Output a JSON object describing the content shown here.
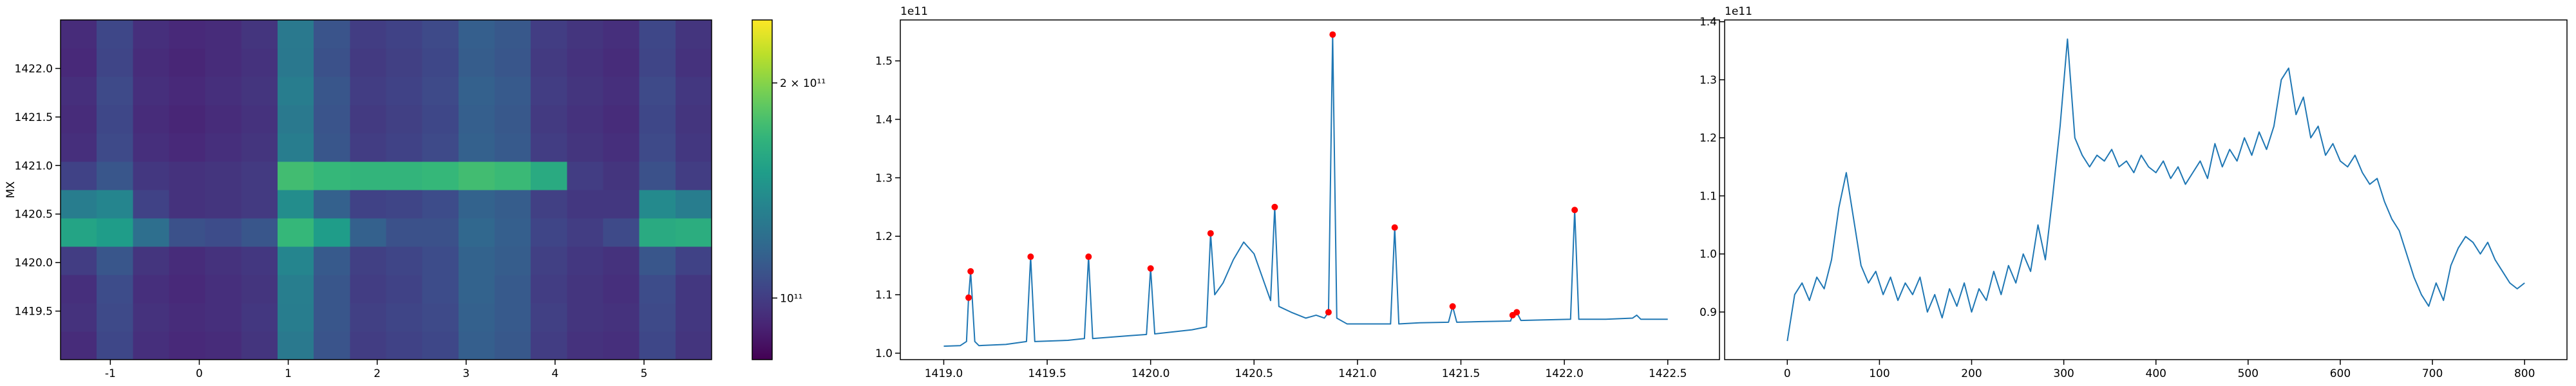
{
  "chart_data": [
    {
      "type": "heatmap",
      "ylabel": "MX",
      "xlim": [
        -1.56,
        5.76
      ],
      "ylim": [
        1419.0,
        1422.5
      ],
      "xticks": [
        -1,
        0,
        1,
        2,
        3,
        4,
        5
      ],
      "yticks": [
        1419.5,
        {
          "value": 1420,
          "label": "1420.0"
        },
        1420.5,
        {
          "value": 1421,
          "label": "1421.0"
        },
        1421.5,
        {
          "value": 1422,
          "label": "1422.0"
        }
      ],
      "colormap": "viridis",
      "color_log": true,
      "clim": [
        82000000000.0,
        245000000000.0
      ],
      "cticks": [
        {
          "value": 100000000000.0,
          "label": "10¹¹"
        },
        {
          "value": 200000000000.0,
          "label": "2 × 10¹¹"
        }
      ],
      "z": [
        [
          94000000000.0,
          104000000000.0,
          95000000000.0,
          93000000000.0,
          94000000000.0,
          97000000000.0,
          128000000000.0,
          109000000000.0,
          100000000000.0,
          102000000000.0,
          104000000000.0,
          114000000000.0,
          111000000000.0,
          100000000000.0,
          96000000000.0,
          95000000000.0,
          104000000000.0,
          97000000000.0
        ],
        [
          96000000000.0,
          105000000000.0,
          96000000000.0,
          94000000000.0,
          95000000000.0,
          98000000000.0,
          130000000000.0,
          110000000000.0,
          101000000000.0,
          103000000000.0,
          105000000000.0,
          115000000000.0,
          112000000000.0,
          101000000000.0,
          97000000000.0,
          96000000000.0,
          105000000000.0,
          98000000000.0
        ],
        [
          95000000000.0,
          106000000000.0,
          95000000000.0,
          93000000000.0,
          95000000000.0,
          97000000000.0,
          131000000000.0,
          110000000000.0,
          100000000000.0,
          102000000000.0,
          106000000000.0,
          116000000000.0,
          112000000000.0,
          100000000000.0,
          97000000000.0,
          95000000000.0,
          106000000000.0,
          98000000000.0
        ],
        [
          100000000000.0,
          110000000000.0,
          97000000000.0,
          94000000000.0,
          96000000000.0,
          98000000000.0,
          135000000000.0,
          112000000000.0,
          101000000000.0,
          103000000000.0,
          106000000000.0,
          116000000000.0,
          113000000000.0,
          101000000000.0,
          98000000000.0,
          96000000000.0,
          110000000000.0,
          102000000000.0
        ],
        [
          155000000000.0,
          150000000000.0,
          122000000000.0,
          108000000000.0,
          106000000000.0,
          110000000000.0,
          170000000000.0,
          150000000000.0,
          115000000000.0,
          108000000000.0,
          108000000000.0,
          118000000000.0,
          114000000000.0,
          103000000000.0,
          100000000000.0,
          105000000000.0,
          160000000000.0,
          162000000000.0
        ],
        [
          130000000000.0,
          135000000000.0,
          102000000000.0,
          96000000000.0,
          97000000000.0,
          99000000000.0,
          140000000000.0,
          115000000000.0,
          102000000000.0,
          103000000000.0,
          106000000000.0,
          116000000000.0,
          113000000000.0,
          101000000000.0,
          98000000000.0,
          98000000000.0,
          138000000000.0,
          130000000000.0
        ],
        [
          102000000000.0,
          110000000000.0,
          98000000000.0,
          96000000000.0,
          97000000000.0,
          99000000000.0,
          175000000000.0,
          170000000000.0,
          168000000000.0,
          168000000000.0,
          170000000000.0,
          175000000000.0,
          172000000000.0,
          160000000000.0,
          100000000000.0,
          97000000000.0,
          108000000000.0,
          100000000000.0
        ],
        [
          95000000000.0,
          105000000000.0,
          95000000000.0,
          93000000000.0,
          95000000000.0,
          97000000000.0,
          130000000000.0,
          110000000000.0,
          100000000000.0,
          102000000000.0,
          105000000000.0,
          115000000000.0,
          112000000000.0,
          100000000000.0,
          97000000000.0,
          95000000000.0,
          105000000000.0,
          98000000000.0
        ],
        [
          94000000000.0,
          104000000000.0,
          94000000000.0,
          92000000000.0,
          94000000000.0,
          96000000000.0,
          128000000000.0,
          109000000000.0,
          99000000000.0,
          101000000000.0,
          104000000000.0,
          114000000000.0,
          111000000000.0,
          99000000000.0,
          96000000000.0,
          94000000000.0,
          104000000000.0,
          97000000000.0
        ],
        [
          95000000000.0,
          105000000000.0,
          95000000000.0,
          93000000000.0,
          95000000000.0,
          97000000000.0,
          130000000000.0,
          110000000000.0,
          100000000000.0,
          102000000000.0,
          105000000000.0,
          115000000000.0,
          112000000000.0,
          100000000000.0,
          97000000000.0,
          95000000000.0,
          105000000000.0,
          98000000000.0
        ],
        [
          93000000000.0,
          103000000000.0,
          94000000000.0,
          92000000000.0,
          94000000000.0,
          96000000000.0,
          127000000000.0,
          108000000000.0,
          99000000000.0,
          101000000000.0,
          104000000000.0,
          113000000000.0,
          110000000000.0,
          99000000000.0,
          96000000000.0,
          94000000000.0,
          103000000000.0,
          96000000000.0
        ],
        [
          94000000000.0,
          104000000000.0,
          95000000000.0,
          93000000000.0,
          94000000000.0,
          97000000000.0,
          128000000000.0,
          109000000000.0,
          100000000000.0,
          102000000000.0,
          105000000000.0,
          114000000000.0,
          111000000000.0,
          100000000000.0,
          97000000000.0,
          95000000000.0,
          104000000000.0,
          97000000000.0
        ]
      ]
    },
    {
      "type": "line",
      "offset_label": "1e11",
      "xlim": [
        1418.79,
        1422.75
      ],
      "ylim": [
        0.989,
        1.57
      ],
      "xticks": [
        {
          "value": 1419,
          "label": "1419.0"
        },
        1419.5,
        {
          "value": 1420,
          "label": "1420.0"
        },
        1420.5,
        {
          "value": 1421,
          "label": "1421.0"
        },
        1421.5,
        {
          "value": 1422,
          "label": "1422.0"
        },
        1422.5
      ],
      "yticks": [
        {
          "value": 1,
          "label": "1.0"
        },
        1.1,
        1.2,
        1.3,
        1.4,
        1.5
      ],
      "x": [
        1419.0,
        1419.08,
        1419.11,
        1419.12,
        1419.13,
        1419.15,
        1419.17,
        1419.3,
        1419.4,
        1419.42,
        1419.44,
        1419.6,
        1419.68,
        1419.7,
        1419.72,
        1419.9,
        1419.98,
        1420.0,
        1420.02,
        1420.2,
        1420.27,
        1420.29,
        1420.31,
        1420.35,
        1420.4,
        1420.45,
        1420.5,
        1420.55,
        1420.58,
        1420.6,
        1420.62,
        1420.68,
        1420.75,
        1420.8,
        1420.84,
        1420.86,
        1420.88,
        1420.9,
        1420.95,
        1421.0,
        1421.1,
        1421.16,
        1421.18,
        1421.2,
        1421.3,
        1421.44,
        1421.46,
        1421.48,
        1421.6,
        1421.74,
        1421.75,
        1421.77,
        1421.79,
        1421.9,
        1422.03,
        1422.05,
        1422.07,
        1422.2,
        1422.33,
        1422.35,
        1422.37,
        1422.5
      ],
      "series": [
        {
          "color": "#1f77b4",
          "values": [
            1.012,
            1.013,
            1.02,
            1.095,
            1.14,
            1.02,
            1.013,
            1.015,
            1.02,
            1.165,
            1.02,
            1.022,
            1.025,
            1.165,
            1.025,
            1.03,
            1.032,
            1.145,
            1.033,
            1.04,
            1.045,
            1.205,
            1.1,
            1.12,
            1.16,
            1.19,
            1.17,
            1.12,
            1.09,
            1.25,
            1.08,
            1.07,
            1.06,
            1.065,
            1.06,
            1.07,
            1.545,
            1.06,
            1.05,
            1.05,
            1.05,
            1.05,
            1.215,
            1.05,
            1.052,
            1.053,
            1.08,
            1.053,
            1.054,
            1.055,
            1.065,
            1.07,
            1.056,
            1.057,
            1.058,
            1.245,
            1.058,
            1.058,
            1.06,
            1.065,
            1.058,
            1.058
          ]
        }
      ],
      "points": {
        "color": "red",
        "x": [
          1419.12,
          1419.13,
          1419.42,
          1419.7,
          1420.0,
          1420.29,
          1420.6,
          1420.86,
          1420.88,
          1421.18,
          1421.46,
          1421.75,
          1421.77,
          1422.05
        ],
        "values": [
          1.095,
          1.14,
          1.165,
          1.165,
          1.145,
          1.205,
          1.25,
          1.07,
          1.545,
          1.215,
          1.08,
          1.065,
          1.07,
          1.245
        ]
      }
    },
    {
      "type": "line",
      "offset_label": "1e11",
      "xlim": [
        -68,
        846
      ],
      "ylim": [
        0.818,
        1.403
      ],
      "xticks": [
        0,
        100,
        200,
        300,
        400,
        500,
        600,
        700,
        800
      ],
      "yticks": [
        0.9,
        {
          "value": 1,
          "label": "1.0"
        },
        1.1,
        1.2,
        1.3,
        1.4
      ],
      "x": [
        0,
        8,
        16,
        24,
        32,
        40,
        48,
        56,
        64,
        72,
        80,
        88,
        96,
        104,
        112,
        120,
        128,
        136,
        144,
        152,
        160,
        168,
        176,
        184,
        192,
        200,
        208,
        216,
        224,
        232,
        240,
        248,
        256,
        264,
        272,
        280,
        288,
        296,
        304,
        312,
        320,
        328,
        336,
        344,
        352,
        360,
        368,
        376,
        384,
        392,
        400,
        408,
        416,
        424,
        432,
        440,
        448,
        456,
        464,
        472,
        480,
        488,
        496,
        504,
        512,
        520,
        528,
        536,
        544,
        552,
        560,
        568,
        576,
        584,
        592,
        600,
        608,
        616,
        624,
        632,
        640,
        648,
        656,
        664,
        672,
        680,
        688,
        696,
        704,
        712,
        720,
        728,
        736,
        744,
        752,
        760,
        768,
        776,
        784,
        792,
        800
      ],
      "series": [
        {
          "color": "#1f77b4",
          "values": [
            0.85,
            0.93,
            0.95,
            0.92,
            0.96,
            0.94,
            0.99,
            1.08,
            1.14,
            1.06,
            0.98,
            0.95,
            0.97,
            0.93,
            0.96,
            0.92,
            0.95,
            0.93,
            0.96,
            0.9,
            0.93,
            0.89,
            0.94,
            0.91,
            0.95,
            0.9,
            0.94,
            0.92,
            0.97,
            0.93,
            0.98,
            0.95,
            1.0,
            0.97,
            1.05,
            0.99,
            1.1,
            1.22,
            1.37,
            1.2,
            1.17,
            1.15,
            1.17,
            1.16,
            1.18,
            1.15,
            1.16,
            1.14,
            1.17,
            1.15,
            1.14,
            1.16,
            1.13,
            1.15,
            1.12,
            1.14,
            1.16,
            1.13,
            1.19,
            1.15,
            1.18,
            1.16,
            1.2,
            1.17,
            1.21,
            1.18,
            1.22,
            1.3,
            1.32,
            1.24,
            1.27,
            1.2,
            1.22,
            1.17,
            1.19,
            1.16,
            1.15,
            1.17,
            1.14,
            1.12,
            1.13,
            1.09,
            1.06,
            1.04,
            1.0,
            0.96,
            0.93,
            0.91,
            0.95,
            0.92,
            0.98,
            1.01,
            1.03,
            1.02,
            1.0,
            1.02,
            0.99,
            0.97,
            0.95,
            0.94,
            0.95
          ]
        }
      ]
    }
  ]
}
